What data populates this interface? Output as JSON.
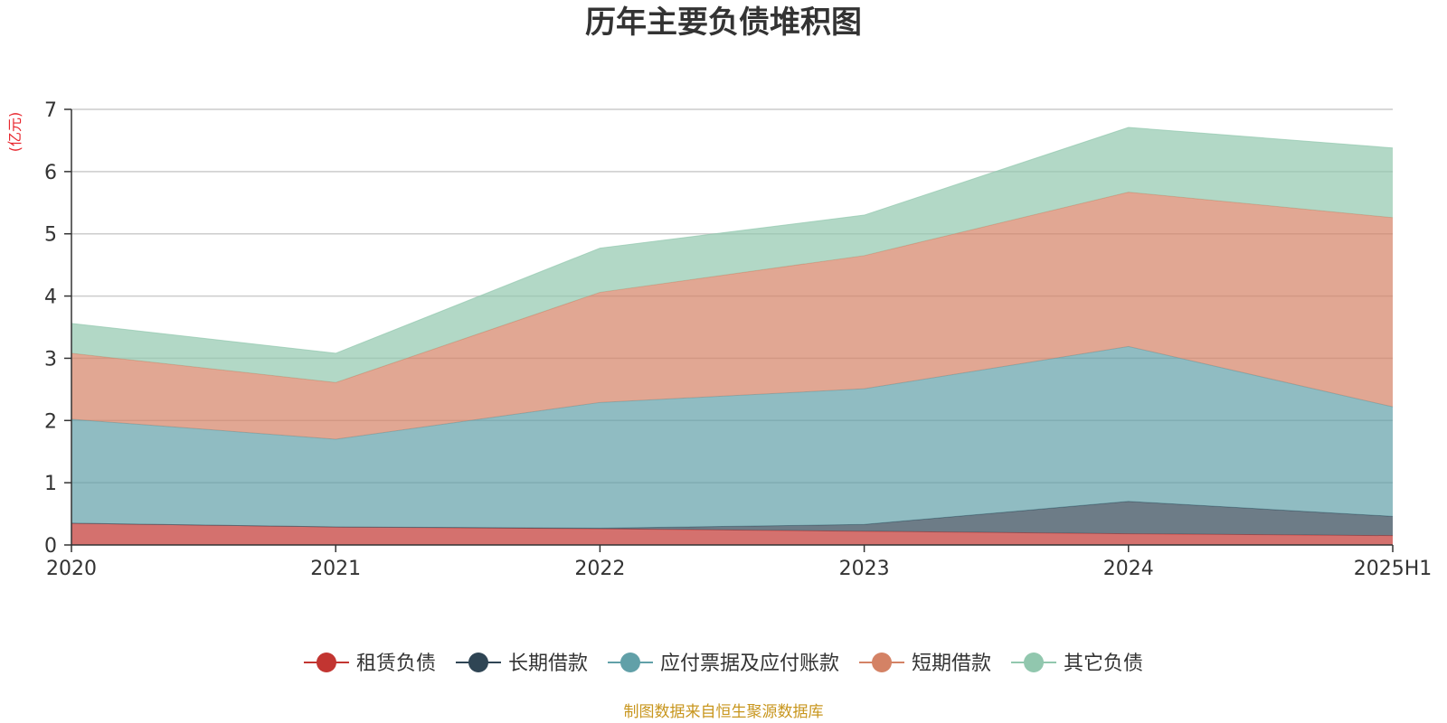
{
  "chart_data": {
    "type": "area",
    "title": "历年主要负债堆积图",
    "y_unit_label": "(亿元)",
    "categories": [
      "2020",
      "2021",
      "2022",
      "2023",
      "2024",
      "2025H1"
    ],
    "stacked": true,
    "ylim": [
      0,
      7
    ],
    "yticks": [
      0,
      1,
      2,
      3,
      4,
      5,
      6,
      7
    ],
    "grid": true,
    "legend_position": "bottom",
    "series": [
      {
        "name": "租赁负债",
        "color": "#c23531",
        "values": [
          0.35,
          0.29,
          0.26,
          0.22,
          0.18,
          0.15
        ]
      },
      {
        "name": "长期借款",
        "color": "#2f4554",
        "values": [
          0.0,
          0.0,
          0.01,
          0.11,
          0.52,
          0.31
        ]
      },
      {
        "name": "应付票据及应付账款",
        "color": "#61a0a8",
        "values": [
          1.67,
          1.41,
          2.02,
          2.18,
          2.49,
          1.76
        ]
      },
      {
        "name": "短期借款",
        "color": "#d48265",
        "values": [
          1.06,
          0.91,
          1.77,
          2.14,
          2.48,
          3.04
        ]
      },
      {
        "name": "其它负债",
        "color": "#91c7ae",
        "values": [
          0.48,
          0.47,
          0.71,
          0.65,
          1.04,
          1.12
        ]
      }
    ]
  },
  "source_note": "制图数据来自恒生聚源数据库",
  "colors": {
    "unit_label": "#e8272f",
    "source_note": "#c8961e",
    "grid": "#cccccc",
    "axis": "#333333"
  }
}
